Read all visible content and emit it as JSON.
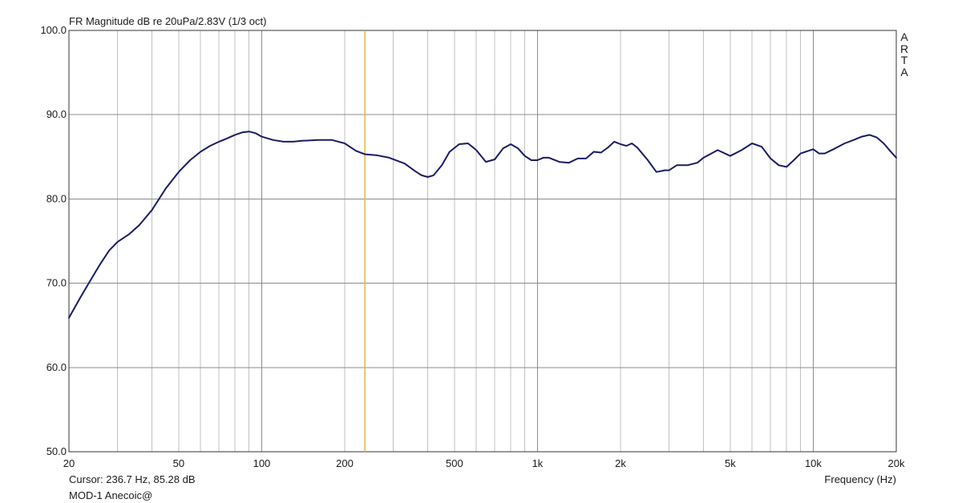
{
  "chart_data": {
    "type": "line",
    "title": "FR Magnitude dB re 20uPa/2.83V (1/3 oct)",
    "xlabel": "Frequency (Hz)",
    "ylabel": "",
    "x_scale": "log",
    "xlim": [
      20,
      20000
    ],
    "ylim": [
      50.0,
      100.0
    ],
    "grid": true,
    "x_ticks": [
      {
        "value": 20,
        "label": "20"
      },
      {
        "value": 50,
        "label": "50"
      },
      {
        "value": 100,
        "label": "100"
      },
      {
        "value": 200,
        "label": "200"
      },
      {
        "value": 500,
        "label": "500"
      },
      {
        "value": 1000,
        "label": "1k"
      },
      {
        "value": 2000,
        "label": "2k"
      },
      {
        "value": 5000,
        "label": "5k"
      },
      {
        "value": 10000,
        "label": "10k"
      },
      {
        "value": 20000,
        "label": "20k"
      }
    ],
    "y_ticks": [
      {
        "value": 50,
        "label": "50.0"
      },
      {
        "value": 60,
        "label": "60.0"
      },
      {
        "value": 70,
        "label": "70.0"
      },
      {
        "value": 80,
        "label": "80.0"
      },
      {
        "value": 90,
        "label": "90.0"
      },
      {
        "value": 100,
        "label": "100.0"
      }
    ],
    "cursor": {
      "frequency": 236.7,
      "label": "Cursor: 236.7 Hz, 85.28 dB"
    },
    "series": [
      {
        "name": "MOD-1 Anecoic@",
        "color": "#1a1a66",
        "x": [
          20,
          22,
          24,
          26,
          28,
          30,
          33,
          36,
          40,
          45,
          50,
          55,
          60,
          65,
          70,
          75,
          80,
          85,
          90,
          95,
          100,
          110,
          120,
          130,
          140,
          160,
          180,
          200,
          220,
          236.7,
          260,
          290,
          330,
          360,
          380,
          400,
          420,
          450,
          480,
          520,
          560,
          600,
          650,
          700,
          750,
          800,
          850,
          900,
          950,
          1000,
          1050,
          1100,
          1200,
          1300,
          1400,
          1500,
          1600,
          1700,
          1800,
          1900,
          2000,
          2100,
          2200,
          2300,
          2500,
          2700,
          2900,
          3000,
          3200,
          3500,
          3800,
          4000,
          4500,
          5000,
          5500,
          6000,
          6500,
          7000,
          7500,
          8000,
          8500,
          9000,
          10000,
          10500,
          11000,
          12000,
          13000,
          14000,
          15000,
          16000,
          17000,
          18000,
          19000,
          20000
        ],
        "values": [
          65.9,
          68.3,
          70.4,
          72.3,
          73.9,
          74.9,
          75.8,
          76.9,
          78.7,
          81.3,
          83.2,
          84.6,
          85.6,
          86.3,
          86.8,
          87.2,
          87.6,
          87.9,
          88.0,
          87.8,
          87.4,
          87.0,
          86.8,
          86.8,
          86.9,
          87.0,
          87.0,
          86.6,
          85.7,
          85.3,
          85.2,
          84.9,
          84.2,
          83.3,
          82.8,
          82.6,
          82.8,
          84.0,
          85.6,
          86.5,
          86.6,
          85.8,
          84.4,
          84.7,
          86.0,
          86.5,
          86.0,
          85.1,
          84.6,
          84.6,
          84.9,
          84.9,
          84.4,
          84.3,
          84.8,
          84.8,
          85.6,
          85.5,
          86.1,
          86.8,
          86.5,
          86.3,
          86.6,
          86.1,
          84.7,
          83.2,
          83.4,
          83.4,
          84.0,
          84.0,
          84.3,
          84.9,
          85.8,
          85.1,
          85.8,
          86.6,
          86.2,
          84.8,
          84.0,
          83.8,
          84.6,
          85.4,
          85.9,
          85.4,
          85.4,
          86.0,
          86.6,
          87.0,
          87.4,
          87.6,
          87.3,
          86.6,
          85.7,
          84.9
        ]
      }
    ]
  },
  "cursor_readout": "Cursor: 236.7 Hz, 85.28 dB",
  "measurement_name": "MOD-1 Anecoic@",
  "logo": {
    "letters": [
      "A",
      "R",
      "T",
      "A"
    ]
  },
  "colors": {
    "trace": "#1a1a66",
    "cursor": "#e3b84a",
    "grid": "#c0c0c0",
    "axis": "#333333"
  }
}
